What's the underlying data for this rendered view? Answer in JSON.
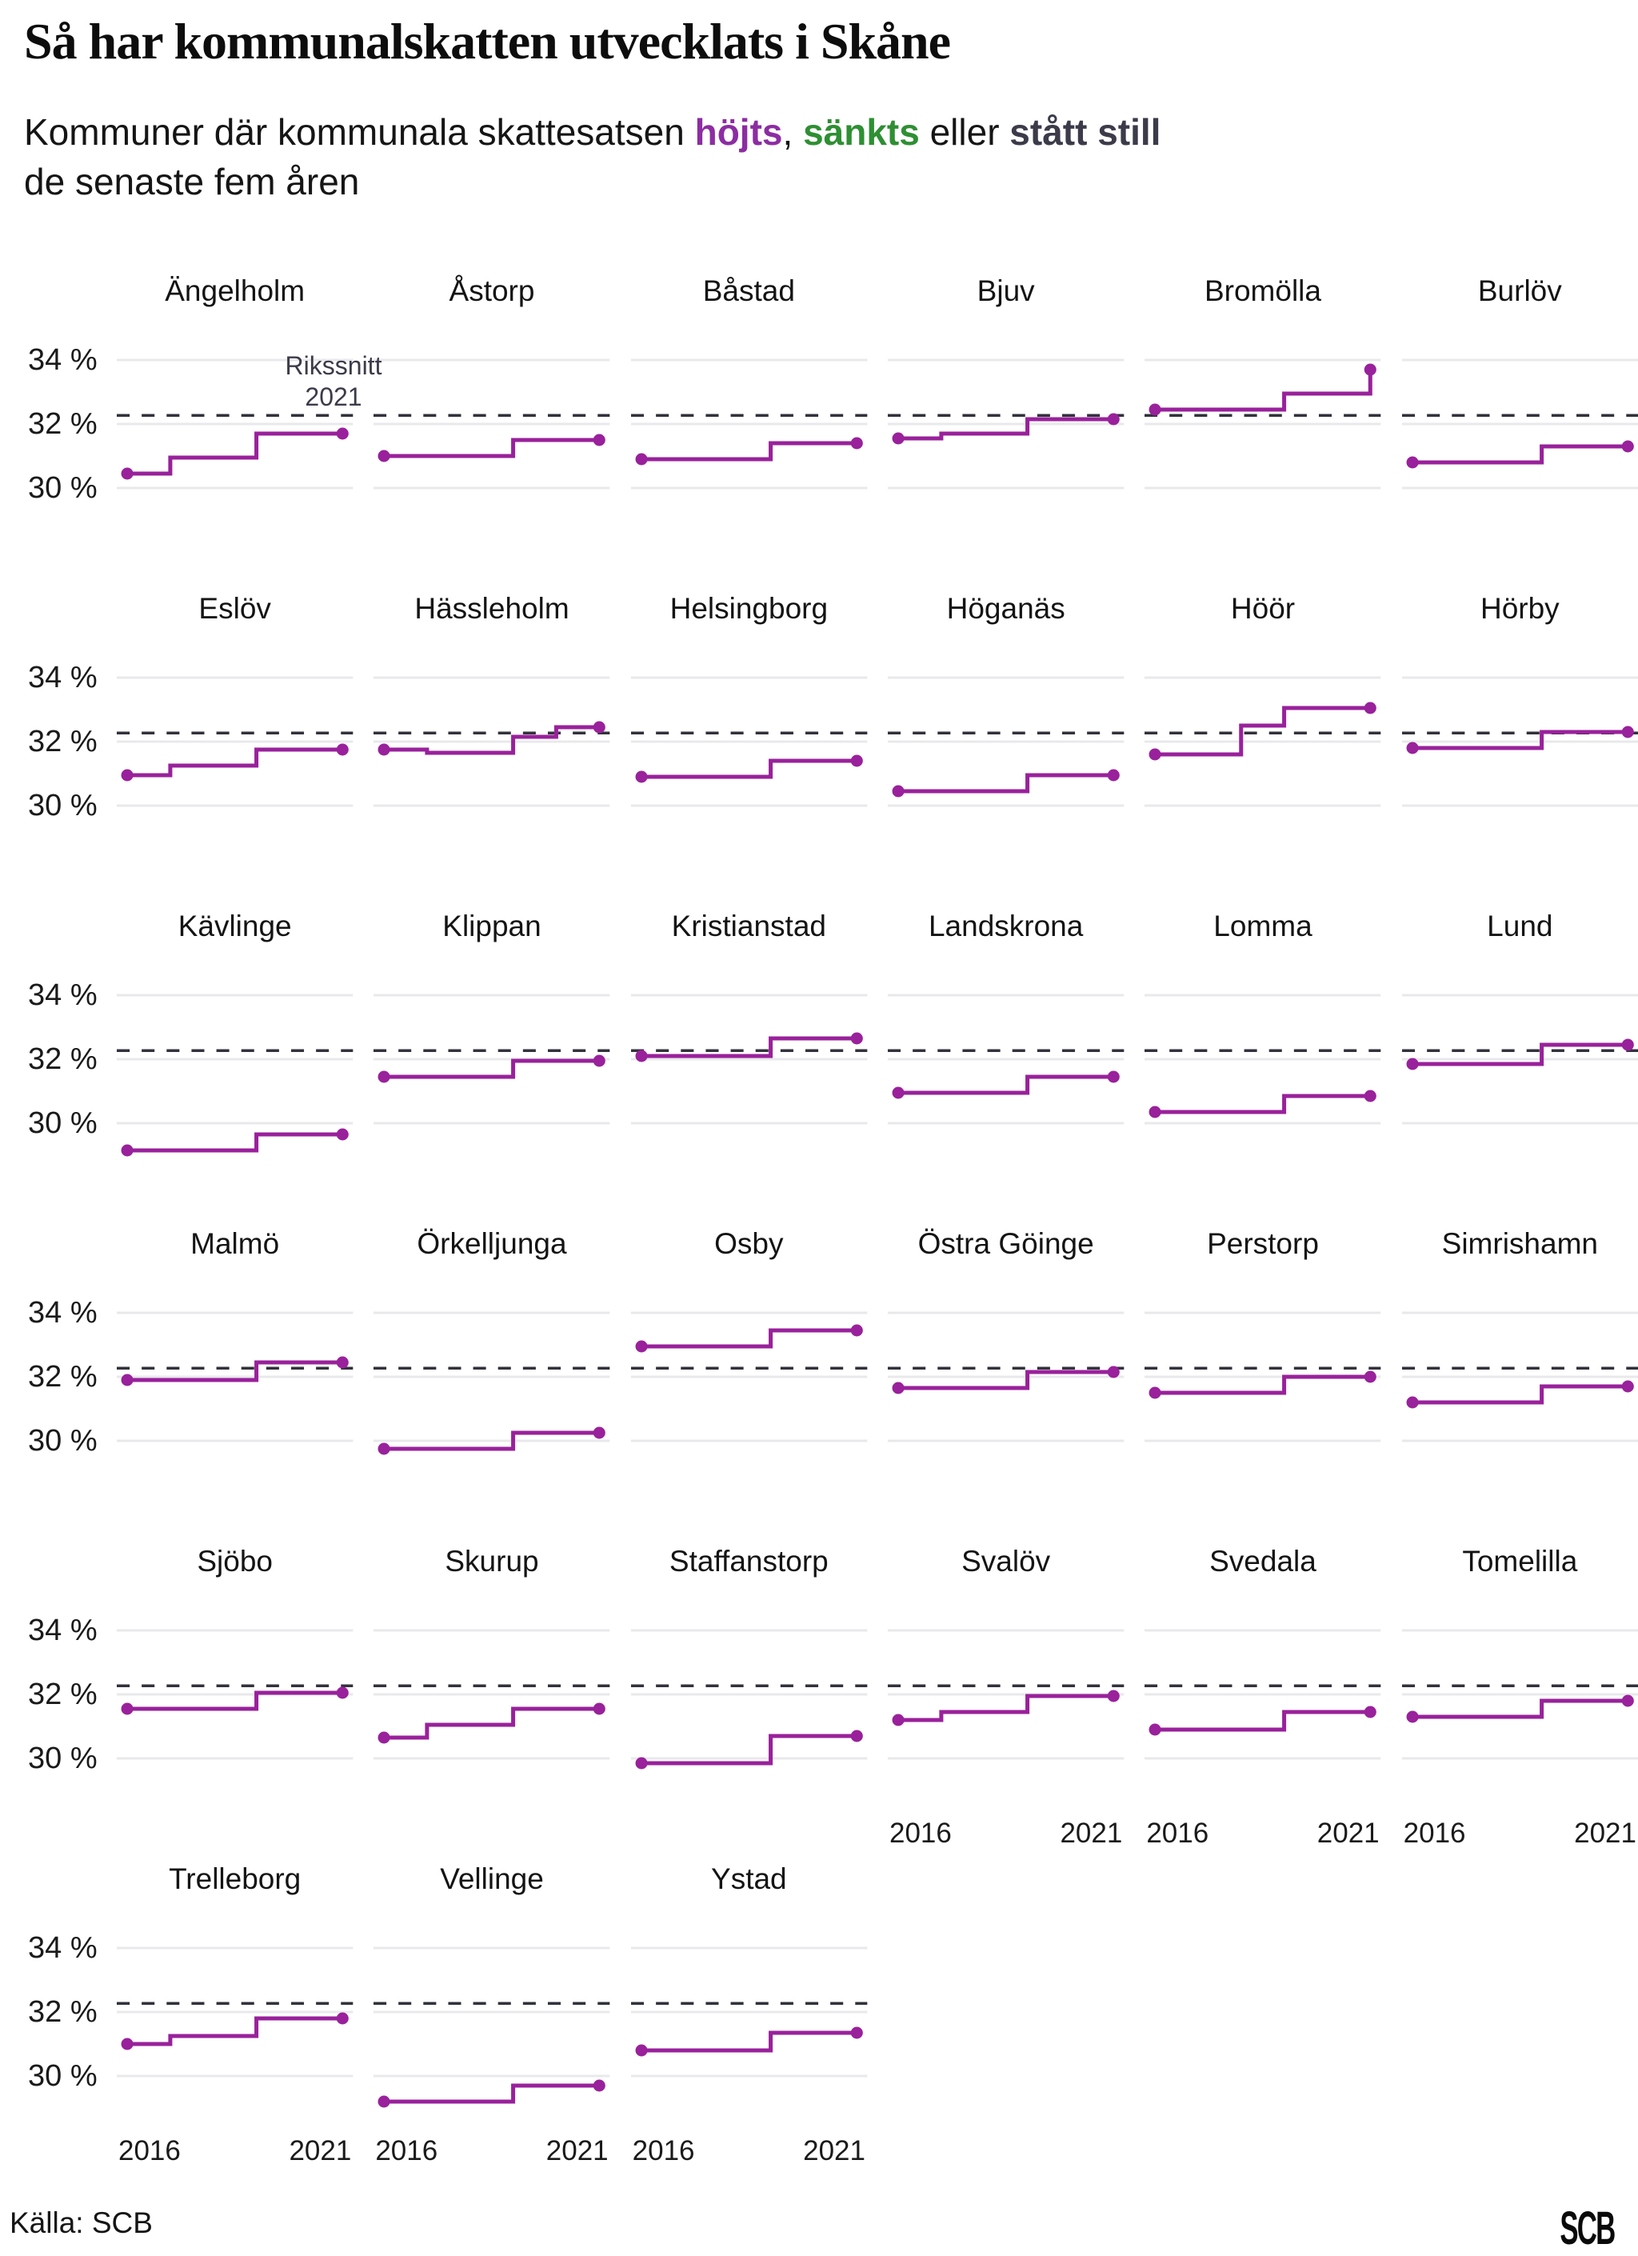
{
  "page": {
    "title": "Så har kommunalskatten utvecklats i Skåne"
  },
  "subtitle": {
    "prefix": "Kommuner där kommunala skattesatsen ",
    "raised": "höjts",
    "sep1": ", ",
    "lowered": "sänkts",
    "sep2": " eller ",
    "unchanged": "stått still",
    "line2": "de senaste fem åren"
  },
  "colors": {
    "raised": "#8c2da2",
    "lowered": "#2e8f33",
    "unchanged": "#3b3b4a",
    "line": "#99219b",
    "reference": "#32323c",
    "grid": "#e9e9ec"
  },
  "footer": {
    "source": "Källa: SCB",
    "logo": "SCB"
  },
  "chart_data": {
    "type": "line",
    "subtype": "step-small-multiples",
    "title": "Så har kommunalskatten utvecklats i Skåne",
    "unit": "%",
    "x": [
      2016,
      2017,
      2018,
      2019,
      2020,
      2021
    ],
    "x_tick_labels": [
      "2016",
      "2021"
    ],
    "ylim": [
      28.8,
      34.8
    ],
    "grid": true,
    "yticks": [
      {
        "value": 34,
        "label": "34 %"
      },
      {
        "value": 32,
        "label": "32 %"
      },
      {
        "value": 30,
        "label": "30 %"
      }
    ],
    "reference_line": {
      "label_line1": "Rikssnitt",
      "label_line2": "2021",
      "value": 32.27,
      "style": "dashed"
    },
    "axis_panels": [
      27,
      28,
      29,
      30,
      31,
      32
    ],
    "series": [
      {
        "name": "Ängelholm",
        "values": [
          30.45,
          30.95,
          30.95,
          31.7,
          31.7,
          31.7
        ]
      },
      {
        "name": "Åstorp",
        "values": [
          31.0,
          31.0,
          31.0,
          31.5,
          31.5,
          31.5
        ]
      },
      {
        "name": "Båstad",
        "values": [
          30.9,
          30.9,
          30.9,
          31.4,
          31.4,
          31.4
        ]
      },
      {
        "name": "Bjuv",
        "values": [
          31.55,
          31.7,
          31.7,
          32.15,
          32.15,
          32.15
        ]
      },
      {
        "name": "Bromölla",
        "values": [
          32.45,
          32.45,
          32.45,
          32.95,
          32.95,
          33.7
        ]
      },
      {
        "name": "Burlöv",
        "values": [
          30.8,
          30.8,
          30.8,
          31.3,
          31.3,
          31.3
        ]
      },
      {
        "name": "Eslöv",
        "values": [
          30.95,
          31.25,
          31.25,
          31.75,
          31.75,
          31.75
        ]
      },
      {
        "name": "Hässleholm",
        "values": [
          31.75,
          31.65,
          31.65,
          32.15,
          32.45,
          32.45
        ]
      },
      {
        "name": "Helsingborg",
        "values": [
          30.9,
          30.9,
          30.9,
          31.4,
          31.4,
          31.4
        ]
      },
      {
        "name": "Höganäs",
        "values": [
          30.45,
          30.45,
          30.45,
          30.95,
          30.95,
          30.95
        ]
      },
      {
        "name": "Höör",
        "values": [
          31.6,
          31.6,
          32.5,
          33.05,
          33.05,
          33.05
        ]
      },
      {
        "name": "Hörby",
        "values": [
          31.8,
          31.8,
          31.8,
          32.3,
          32.3,
          32.3
        ]
      },
      {
        "name": "Kävlinge",
        "values": [
          29.15,
          29.15,
          29.15,
          29.65,
          29.65,
          29.65
        ]
      },
      {
        "name": "Klippan",
        "values": [
          31.45,
          31.45,
          31.45,
          31.95,
          31.95,
          31.95
        ]
      },
      {
        "name": "Kristianstad",
        "values": [
          32.1,
          32.1,
          32.1,
          32.65,
          32.65,
          32.65
        ]
      },
      {
        "name": "Landskrona",
        "values": [
          30.95,
          30.95,
          30.95,
          31.45,
          31.45,
          31.45
        ]
      },
      {
        "name": "Lomma",
        "values": [
          30.35,
          30.35,
          30.35,
          30.85,
          30.85,
          30.85
        ]
      },
      {
        "name": "Lund",
        "values": [
          31.85,
          31.85,
          31.85,
          32.45,
          32.45,
          32.45
        ]
      },
      {
        "name": "Malmö",
        "values": [
          31.9,
          31.9,
          31.9,
          32.45,
          32.45,
          32.45
        ]
      },
      {
        "name": "Örkelljunga",
        "values": [
          29.75,
          29.75,
          29.75,
          30.25,
          30.25,
          30.25
        ]
      },
      {
        "name": "Osby",
        "values": [
          32.95,
          32.95,
          32.95,
          33.45,
          33.45,
          33.45
        ]
      },
      {
        "name": "Östra Göinge",
        "values": [
          31.65,
          31.65,
          31.65,
          32.15,
          32.15,
          32.15
        ]
      },
      {
        "name": "Perstorp",
        "values": [
          31.5,
          31.5,
          31.5,
          32.0,
          32.0,
          32.0
        ]
      },
      {
        "name": "Simrishamn",
        "values": [
          31.2,
          31.2,
          31.2,
          31.7,
          31.7,
          31.7
        ]
      },
      {
        "name": "Sjöbo",
        "values": [
          31.55,
          31.55,
          31.55,
          32.05,
          32.05,
          32.05
        ]
      },
      {
        "name": "Skurup",
        "values": [
          30.65,
          31.05,
          31.05,
          31.55,
          31.55,
          31.55
        ]
      },
      {
        "name": "Staffanstorp",
        "values": [
          29.85,
          29.85,
          29.85,
          30.7,
          30.7,
          30.7
        ]
      },
      {
        "name": "Svalöv",
        "values": [
          31.2,
          31.45,
          31.45,
          31.95,
          31.95,
          31.95
        ]
      },
      {
        "name": "Svedala",
        "values": [
          30.9,
          30.9,
          30.9,
          31.45,
          31.45,
          31.45
        ]
      },
      {
        "name": "Tomelilla",
        "values": [
          31.3,
          31.3,
          31.3,
          31.8,
          31.8,
          31.8
        ]
      },
      {
        "name": "Trelleborg",
        "values": [
          31.0,
          31.25,
          31.25,
          31.8,
          31.8,
          31.8
        ]
      },
      {
        "name": "Vellinge",
        "values": [
          29.2,
          29.2,
          29.2,
          29.7,
          29.7,
          29.7
        ]
      },
      {
        "name": "Ystad",
        "values": [
          30.8,
          30.8,
          30.8,
          31.35,
          31.35,
          31.35
        ]
      }
    ]
  }
}
